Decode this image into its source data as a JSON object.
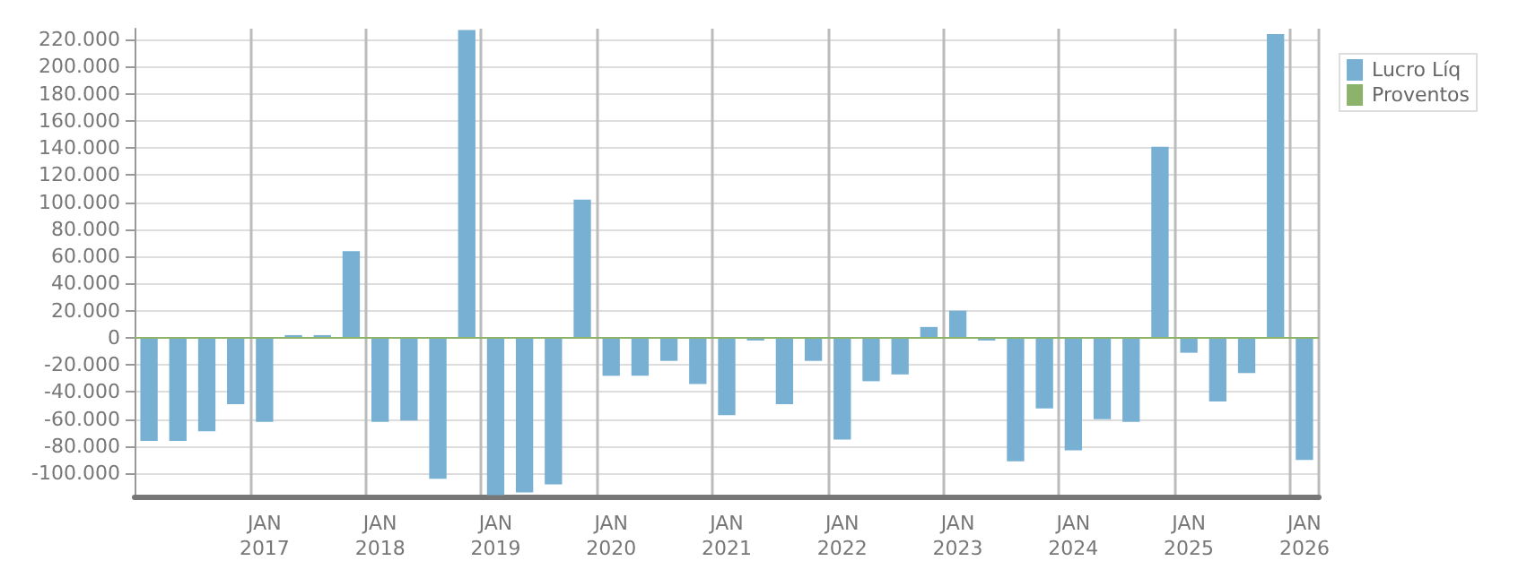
{
  "chart_data": {
    "type": "bar",
    "categories": [
      null,
      null,
      null,
      null,
      "JAN 2017",
      null,
      null,
      null,
      "JAN 2018",
      null,
      null,
      null,
      "JAN 2019",
      null,
      null,
      null,
      "JAN 2020",
      null,
      null,
      null,
      "JAN 2021",
      null,
      null,
      null,
      "JAN 2022",
      null,
      null,
      null,
      "JAN 2023",
      null,
      null,
      null,
      "JAN 2024",
      null,
      null,
      null,
      "JAN 2025",
      null,
      null,
      null,
      "JAN 2026"
    ],
    "series": [
      {
        "name": "Lucro Líq",
        "color": "#77b0d3",
        "values": [
          -76000,
          -76000,
          -69000,
          -49000,
          -62000,
          2000,
          2000,
          64000,
          -62000,
          -61000,
          -104000,
          227000,
          -116000,
          -114000,
          -108000,
          102000,
          -28000,
          -28000,
          -17000,
          -34000,
          -57000,
          -2000,
          -49000,
          -17000,
          -75000,
          -32000,
          -27000,
          8000,
          20000,
          -2000,
          -91000,
          -52000,
          -83000,
          -60000,
          -62000,
          141000,
          -11000,
          -47000,
          -26000,
          224000,
          -90000
        ]
      },
      {
        "name": "Proventos",
        "color": "#8db36b",
        "values": [
          null,
          null,
          null,
          null,
          null,
          null,
          null,
          null,
          null,
          null,
          null,
          null,
          null,
          null,
          null,
          null,
          null,
          null,
          null,
          null,
          null,
          null,
          null,
          null,
          null,
          null,
          null,
          null,
          null,
          null,
          null,
          null,
          null,
          null,
          null,
          null,
          null,
          null,
          null,
          null,
          null
        ]
      }
    ],
    "stacked": true,
    "ylim": [
      -117000,
      228000
    ],
    "yticks": [
      {
        "value": -100000,
        "label": "-100.000"
      },
      {
        "value": -80000,
        "label": "-80.000"
      },
      {
        "value": -60000,
        "label": "-60.000"
      },
      {
        "value": -40000,
        "label": "-40.000"
      },
      {
        "value": -20000,
        "label": "-20.000"
      },
      0,
      {
        "value": 20000,
        "label": "20.000"
      },
      {
        "value": 40000,
        "label": "40.000"
      },
      {
        "value": 60000,
        "label": "60.000"
      },
      {
        "value": 80000,
        "label": "80.000"
      },
      {
        "value": 100000,
        "label": "100.000"
      },
      {
        "value": 120000,
        "label": "120.000"
      },
      {
        "value": 140000,
        "label": "140.000"
      },
      {
        "value": 160000,
        "label": "160.000"
      },
      {
        "value": 180000,
        "label": "180.000"
      },
      {
        "value": 200000,
        "label": "200.000"
      },
      {
        "value": 220000,
        "label": "220.000"
      }
    ],
    "ref_lines": [
      {
        "axis": "y",
        "value": 0,
        "color": "#8db36b"
      }
    ],
    "grid": true,
    "legend": "top right"
  }
}
